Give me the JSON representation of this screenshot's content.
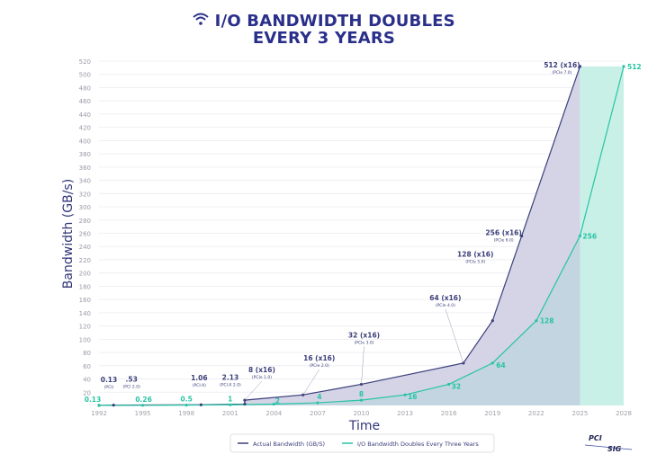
{
  "title_line1": "I/O BANDWIDTH DOUBLES",
  "title_line2": "EVERY 3 YEARS",
  "title_icon": "wifi-icon",
  "logo_text": [
    "PCI",
    "SIG"
  ],
  "colors": {
    "actual": "#3b3f7a",
    "actual_fill": "#d4d4e6",
    "doubling": "#27c4a4",
    "doubling_fill": "#bfd5de",
    "projection_fill": "#c9f0e6",
    "title": "#2a2f8a"
  },
  "chart_data": {
    "type": "line",
    "xlabel": "Time",
    "ylabel": "Bandwidth (GB/s)",
    "xlim": [
      1992,
      2028
    ],
    "ylim": [
      0,
      520
    ],
    "x_ticks": [
      1992,
      1995,
      1998,
      2001,
      2004,
      2007,
      2010,
      2013,
      2016,
      2019,
      2022,
      2025,
      2028
    ],
    "y_ticks": [
      20,
      40,
      60,
      80,
      100,
      120,
      140,
      160,
      180,
      200,
      220,
      240,
      260,
      280,
      300,
      320,
      340,
      360,
      380,
      400,
      420,
      440,
      460,
      480,
      500,
      520
    ],
    "grid": true,
    "legend_position": "bottom",
    "series": [
      {
        "name": "Actual Bandwidth (GB/S)",
        "points": [
          {
            "x": 1992,
            "y": 0.13,
            "label": "0.13",
            "sublabel": "(PCI)"
          },
          {
            "x": 1993,
            "y": 0.53,
            "label": ".53",
            "sublabel": "(PCI 2.0)"
          },
          {
            "x": 1999,
            "y": 1.06,
            "label": "1.06",
            "sublabel": "(PCI-X)"
          },
          {
            "x": 2002,
            "y": 2.13,
            "label": "2.13",
            "sublabel": "(PCI-X 2.0)"
          },
          {
            "x": 2002,
            "y": 8,
            "label": "8 (x16)",
            "sublabel": "(PCIe 1.0)"
          },
          {
            "x": 2006,
            "y": 16,
            "label": "16 (x16)",
            "sublabel": "(PCIe 2.0)"
          },
          {
            "x": 2010,
            "y": 32,
            "label": "32 (x16)",
            "sublabel": "(PCIe 3.0)"
          },
          {
            "x": 2017,
            "y": 64,
            "label": "64 (x16)",
            "sublabel": "(PCIe 4.0)"
          },
          {
            "x": 2019,
            "y": 128,
            "label": "128 (x16)",
            "sublabel": "(PCIe 5.0)"
          },
          {
            "x": 2021,
            "y": 256,
            "label": "256 (x16)",
            "sublabel": "(PCIe 6.0)"
          },
          {
            "x": 2025,
            "y": 512,
            "label": "512 (x16)",
            "sublabel": "(PCIe 7.0)"
          }
        ]
      },
      {
        "name": "I/O Bandwidth Doubles Every Three Years",
        "points": [
          {
            "x": 1992,
            "y": 0.13,
            "label": "0.13"
          },
          {
            "x": 1995,
            "y": 0.26,
            "label": "0.26"
          },
          {
            "x": 1998,
            "y": 0.5,
            "label": "0.5"
          },
          {
            "x": 2001,
            "y": 1,
            "label": "1"
          },
          {
            "x": 2004,
            "y": 2,
            "label": "2"
          },
          {
            "x": 2007,
            "y": 4,
            "label": "4"
          },
          {
            "x": 2010,
            "y": 8,
            "label": "8"
          },
          {
            "x": 2013,
            "y": 16,
            "label": "16"
          },
          {
            "x": 2016,
            "y": 32,
            "label": "32"
          },
          {
            "x": 2019,
            "y": 64,
            "label": "64"
          },
          {
            "x": 2022,
            "y": 128,
            "label": "128"
          },
          {
            "x": 2025,
            "y": 256,
            "label": "256"
          },
          {
            "x": 2028,
            "y": 512,
            "label": "512"
          }
        ]
      }
    ]
  }
}
